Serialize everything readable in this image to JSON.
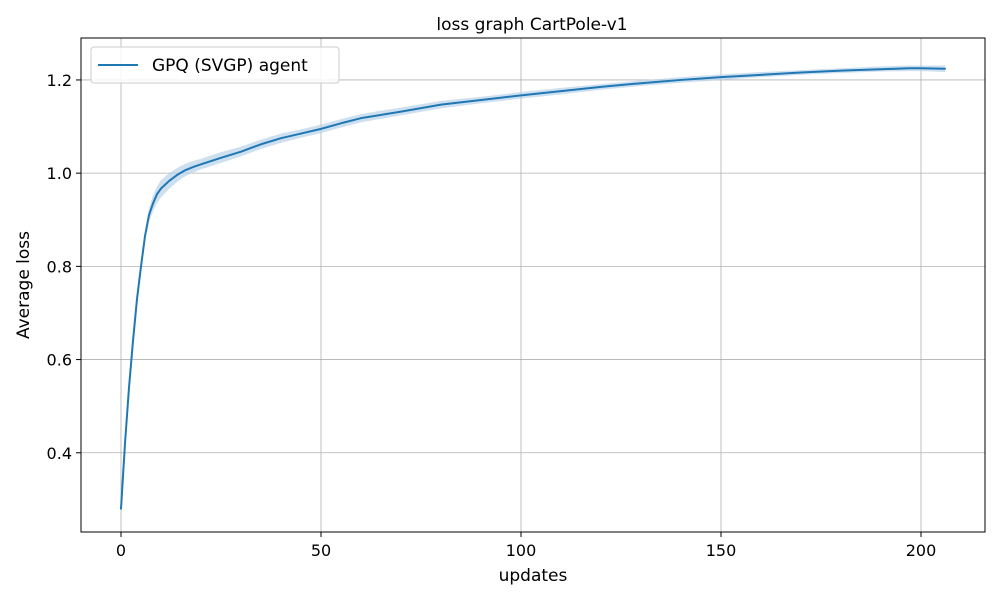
{
  "chart_data": {
    "type": "line",
    "title": "loss graph CartPole-v1",
    "xlabel": "updates",
    "ylabel": "Average loss",
    "xlim": [
      -10,
      216
    ],
    "ylim": [
      0.23,
      1.29
    ],
    "xticks": [
      0,
      50,
      100,
      150,
      200
    ],
    "yticks": [
      0.4,
      0.6,
      0.8,
      1.0,
      1.2
    ],
    "xtick_labels": [
      "0",
      "50",
      "100",
      "150",
      "200"
    ],
    "ytick_labels": [
      "0.4",
      "0.6",
      "0.8",
      "1.0",
      "1.2"
    ],
    "grid": true,
    "legend_position": "upper-left",
    "series": [
      {
        "name": "GPQ (SVGP) agent",
        "color": "#1f77b4",
        "band_color": "#b9d3ea",
        "x": [
          0,
          1,
          2,
          3,
          4,
          5,
          6,
          7,
          8,
          9,
          10,
          12,
          14,
          16,
          18,
          20,
          25,
          30,
          35,
          40,
          45,
          50,
          55,
          60,
          70,
          80,
          90,
          100,
          110,
          120,
          130,
          140,
          150,
          160,
          170,
          180,
          190,
          197,
          200,
          206
        ],
        "mean": [
          0.28,
          0.42,
          0.54,
          0.64,
          0.73,
          0.8,
          0.865,
          0.91,
          0.935,
          0.955,
          0.967,
          0.983,
          0.996,
          1.006,
          1.013,
          1.019,
          1.033,
          1.046,
          1.062,
          1.075,
          1.085,
          1.095,
          1.107,
          1.118,
          1.132,
          1.147,
          1.157,
          1.167,
          1.176,
          1.185,
          1.193,
          1.2,
          1.206,
          1.211,
          1.216,
          1.22,
          1.223,
          1.225,
          1.225,
          1.224
        ],
        "lower": [
          0.28,
          0.42,
          0.54,
          0.64,
          0.73,
          0.8,
          0.855,
          0.895,
          0.918,
          0.936,
          0.948,
          0.966,
          0.981,
          0.993,
          1.001,
          1.008,
          1.022,
          1.036,
          1.052,
          1.065,
          1.076,
          1.086,
          1.098,
          1.109,
          1.124,
          1.139,
          1.15,
          1.16,
          1.169,
          1.179,
          1.187,
          1.194,
          1.2,
          1.206,
          1.211,
          1.215,
          1.218,
          1.219,
          1.219,
          1.217
        ],
        "upper": [
          0.28,
          0.42,
          0.54,
          0.64,
          0.73,
          0.8,
          0.875,
          0.925,
          0.952,
          0.972,
          0.985,
          1.0,
          1.011,
          1.02,
          1.026,
          1.031,
          1.045,
          1.057,
          1.072,
          1.085,
          1.094,
          1.104,
          1.116,
          1.127,
          1.141,
          1.155,
          1.164,
          1.174,
          1.183,
          1.191,
          1.199,
          1.206,
          1.212,
          1.217,
          1.221,
          1.225,
          1.229,
          1.231,
          1.231,
          1.231
        ]
      }
    ]
  }
}
